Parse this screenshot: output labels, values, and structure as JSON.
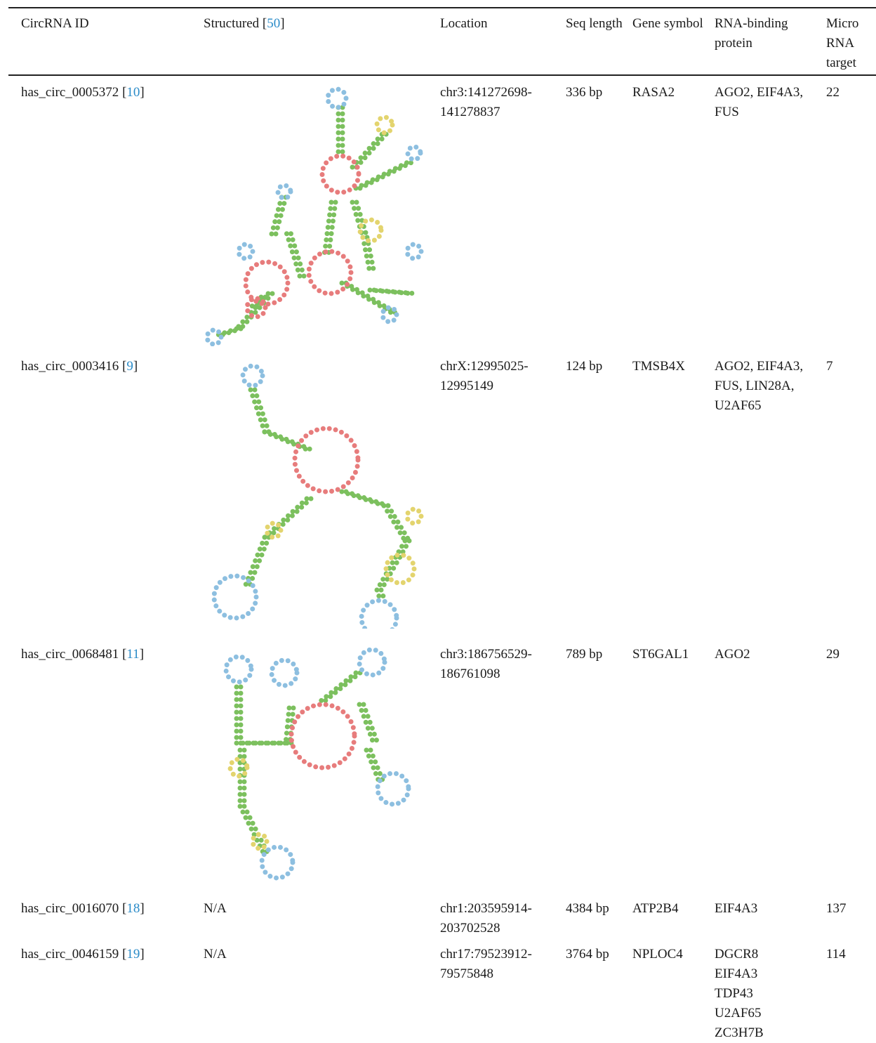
{
  "table": {
    "headers": [
      "CircRNA ID",
      "Structured",
      "Location",
      "Seq length",
      "Gene symbol",
      "RNA-binding protein",
      "Micro RNA target"
    ],
    "header_ref": "50",
    "rows": [
      {
        "id": "has_circ_0005372",
        "ref": "10",
        "structure": null,
        "location": "chr3:141272698-141278837",
        "length": "336 bp",
        "gene": "RASA2",
        "rbp": "AGO2, EIF4A3, FUS",
        "mirna": 22
      },
      {
        "id": "has_circ_0003416",
        "ref": "9",
        "structure": null,
        "location": "chrX:12995025-12995149",
        "length": "124 bp",
        "gene": "TMSB4X",
        "rbp": "AGO2, EIF4A3, FUS, LIN28A, U2AF65",
        "mirna": 7
      },
      {
        "id": "has_circ_0068481",
        "ref": "11",
        "structure": null,
        "location": "chr3:186756529-186761098",
        "length": "789 bp",
        "gene": "ST6GAL1",
        "rbp": "AGO2",
        "mirna": 29
      },
      {
        "id": "has_circ_0016070",
        "ref": "18",
        "structure": "N/A",
        "location": "chr1:203595914-203702528",
        "length": "4384 bp",
        "gene": "ATP2B4",
        "rbp": "EIF4A3",
        "mirna": 137
      },
      {
        "id": "has_circ_0046159",
        "ref": "19",
        "structure": "N/A",
        "location": "chr17:79523912-79575848",
        "length": "3764 bp",
        "gene": "NPLOC4",
        "rbp": [
          "DGCR8",
          "EIF4A3",
          "TDP43",
          "U2AF65",
          "ZC3H7B"
        ],
        "mirna": 114
      }
    ]
  }
}
